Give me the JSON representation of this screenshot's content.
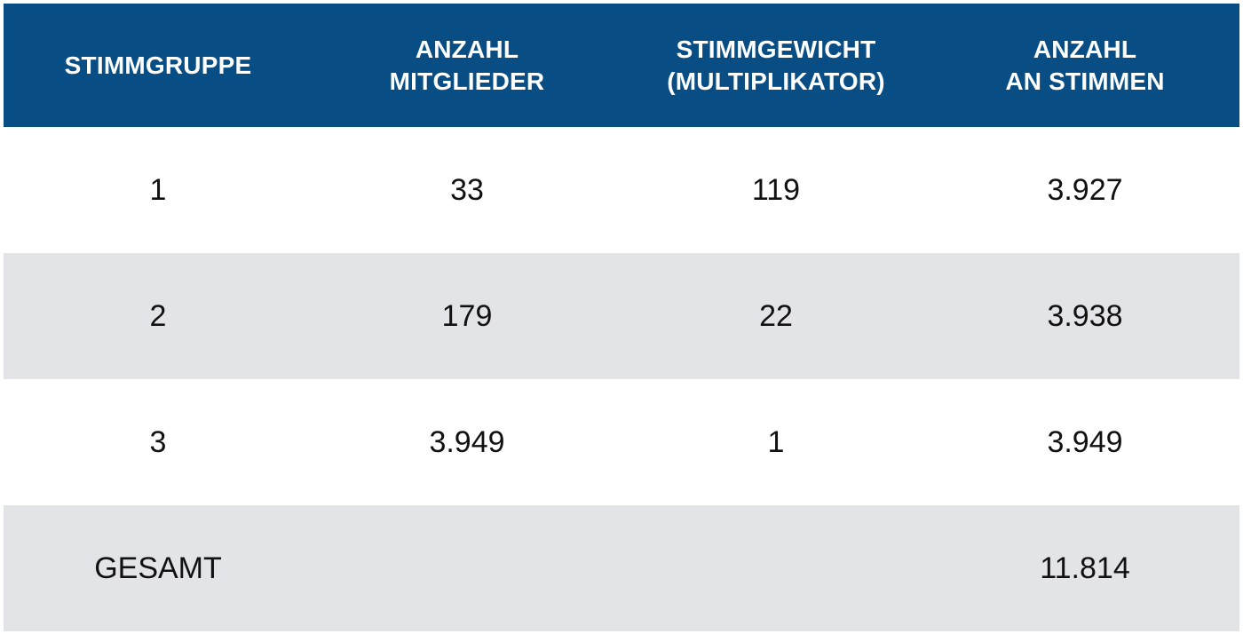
{
  "table": {
    "header": [
      {
        "lines": [
          "STIMMGRUPPE",
          ""
        ]
      },
      {
        "lines": [
          "ANZAHL",
          "MITGLIEDER"
        ]
      },
      {
        "lines": [
          "STIMMGEWICHT",
          "(MULTIPLIKATOR)"
        ]
      },
      {
        "lines": [
          "ANZAHL",
          "AN STIMMEN"
        ]
      }
    ],
    "rows": [
      [
        "1",
        "33",
        "119",
        "3.927"
      ],
      [
        "2",
        "179",
        "22",
        "3.938"
      ],
      [
        "3",
        "3.949",
        "1",
        "3.949"
      ],
      [
        "GESAMT",
        "",
        "",
        "11.814"
      ]
    ]
  },
  "colors": {
    "header_bg": "#084d84",
    "header_text": "#ffffff",
    "alt_row_bg": "#e3e4e8",
    "body_text": "#111111"
  }
}
